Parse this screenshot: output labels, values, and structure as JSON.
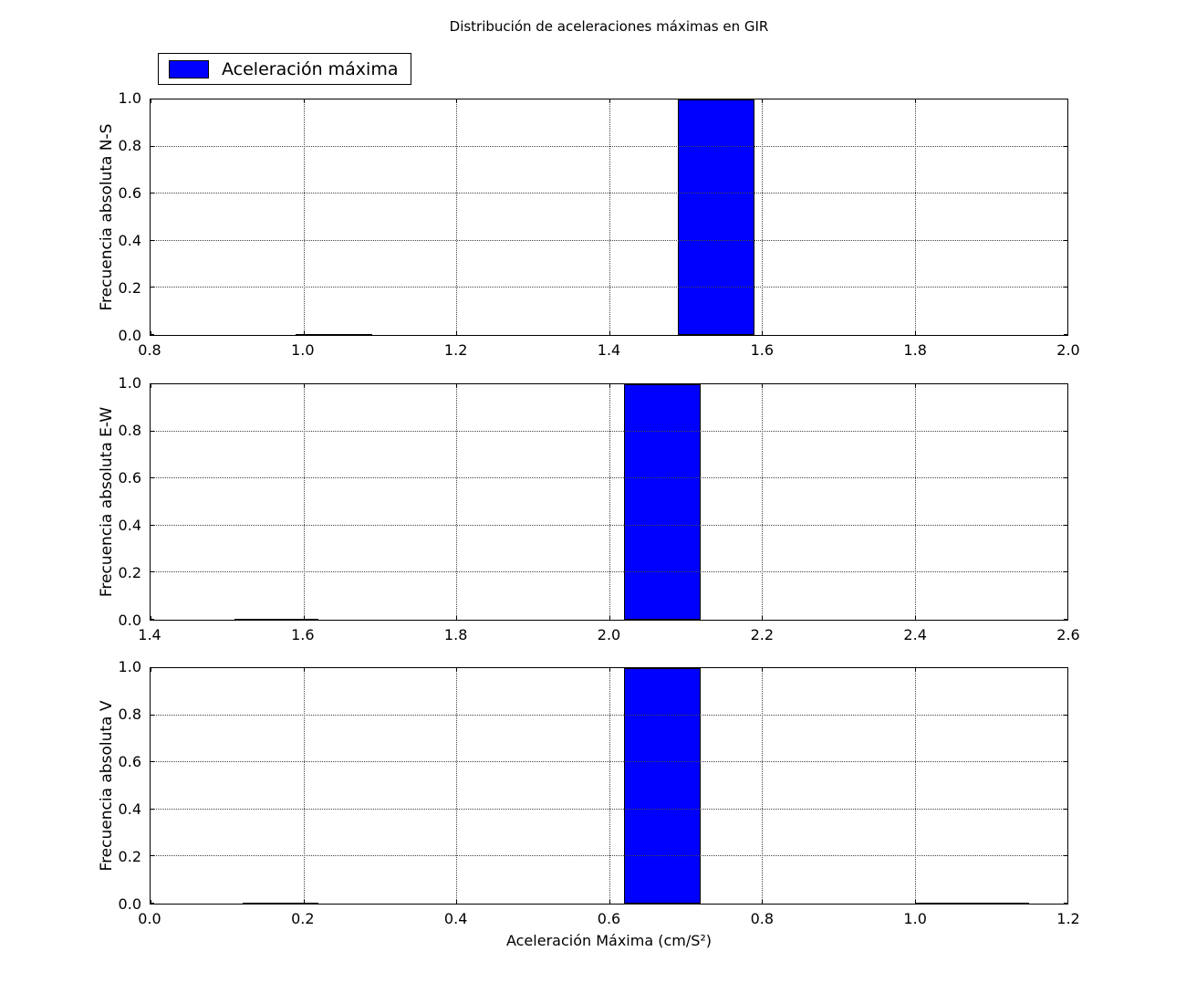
{
  "title": "Distribución de aceleraciones máximas en GIR",
  "legend": {
    "label": "Aceleración máxima",
    "color": "#0000ff"
  },
  "xlabel": "Aceleración Máxima (cm/S²)",
  "chart_data": [
    {
      "type": "bar",
      "ylabel": "Frecuencia absoluta N-S",
      "xlim": [
        0.8,
        2.0
      ],
      "ylim": [
        0.0,
        1.0
      ],
      "xticks": [
        0.8,
        1.0,
        1.2,
        1.4,
        1.6,
        1.8,
        2.0
      ],
      "xtick_labels": [
        "0.8",
        "1.0",
        "1.2",
        "1.4",
        "1.6",
        "1.8",
        "2.0"
      ],
      "yticks": [
        0.0,
        0.2,
        0.4,
        0.6,
        0.8,
        1.0
      ],
      "ytick_labels": [
        "0.0",
        "0.2",
        "0.4",
        "0.6",
        "0.8",
        "1.0"
      ],
      "grid": true,
      "bar_color": "#0000ff",
      "bars": [
        {
          "x0": 1.49,
          "x1": 1.59,
          "height": 1.0
        }
      ],
      "zero_height_bins": [
        {
          "x0": 0.99,
          "x1": 1.09
        }
      ]
    },
    {
      "type": "bar",
      "ylabel": "Frecuencia absoluta E-W",
      "xlim": [
        1.4,
        2.6
      ],
      "ylim": [
        0.0,
        1.0
      ],
      "xticks": [
        1.4,
        1.6,
        1.8,
        2.0,
        2.2,
        2.4,
        2.6
      ],
      "xtick_labels": [
        "1.4",
        "1.6",
        "1.8",
        "2.0",
        "2.2",
        "2.4",
        "2.6"
      ],
      "yticks": [
        0.0,
        0.2,
        0.4,
        0.6,
        0.8,
        1.0
      ],
      "ytick_labels": [
        "0.0",
        "0.2",
        "0.4",
        "0.6",
        "0.8",
        "1.0"
      ],
      "grid": true,
      "bar_color": "#0000ff",
      "bars": [
        {
          "x0": 2.02,
          "x1": 2.12,
          "height": 1.0
        }
      ],
      "zero_height_bins": [
        {
          "x0": 1.51,
          "x1": 1.62
        }
      ]
    },
    {
      "type": "bar",
      "ylabel": "Frecuencia absoluta V",
      "xlim": [
        0.0,
        1.2
      ],
      "ylim": [
        0.0,
        1.0
      ],
      "xticks": [
        0.0,
        0.2,
        0.4,
        0.6,
        0.8,
        1.0,
        1.2
      ],
      "xtick_labels": [
        "0.0",
        "0.2",
        "0.4",
        "0.6",
        "0.8",
        "1.0",
        "1.2"
      ],
      "yticks": [
        0.0,
        0.2,
        0.4,
        0.6,
        0.8,
        1.0
      ],
      "ytick_labels": [
        "0.0",
        "0.2",
        "0.4",
        "0.6",
        "0.8",
        "1.0"
      ],
      "grid": true,
      "bar_color": "#0000ff",
      "bars": [
        {
          "x0": 0.62,
          "x1": 0.72,
          "height": 1.0
        }
      ],
      "zero_height_bins": [
        {
          "x0": 0.12,
          "x1": 0.22
        },
        {
          "x0": 1.0,
          "x1": 1.15
        }
      ]
    }
  ]
}
